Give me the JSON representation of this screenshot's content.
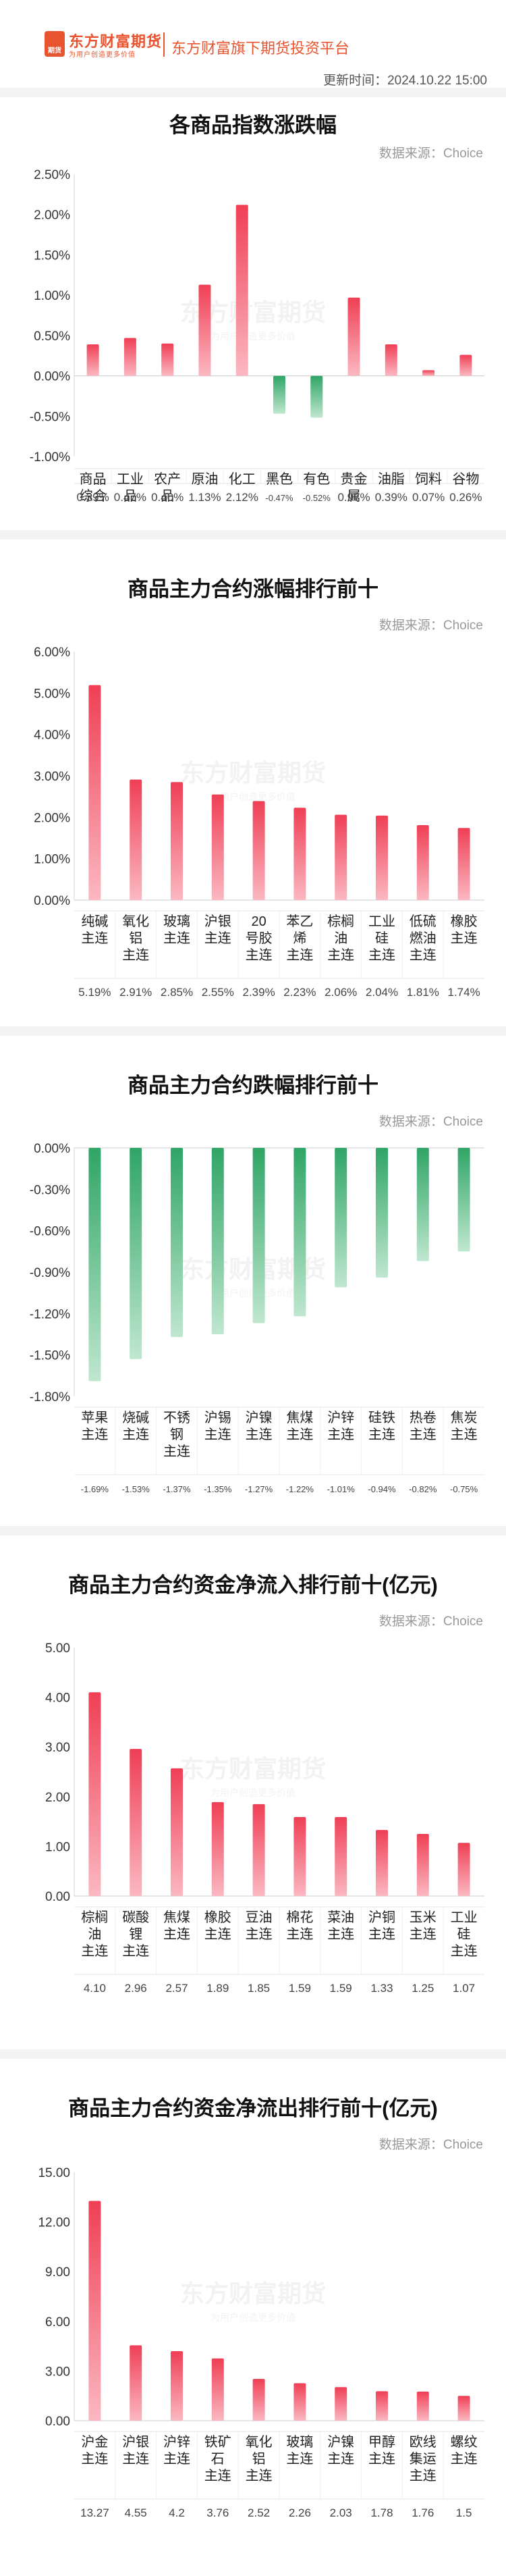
{
  "header": {
    "logo_badge": "期货",
    "logo_name": "东方财富期货",
    "logo_slogan": "为用户创造更多价值",
    "tagline": "东方财富旗下期货投资平台",
    "update_time": "更新时间：2024.10.22 15:00"
  },
  "watermark": {
    "name": "东方财富期货",
    "slogan": "为用户创造更多价值"
  },
  "colors": {
    "up_top": "#fbb8c2",
    "up_bottom": "#ef3f55",
    "down_top": "#2fa566",
    "down_bottom": "#bfe7cf",
    "accent": "#e8542f"
  },
  "chart_data": [
    {
      "type": "bar",
      "title": "各商品指数涨跌幅",
      "source": "数据来源：Choice",
      "categories": [
        "商品综合",
        "工业品",
        "农产品",
        "原油",
        "化工",
        "黑色",
        "有色",
        "贵金属",
        "油脂",
        "饲料",
        "谷物"
      ],
      "values": [
        0.39,
        0.47,
        0.4,
        1.13,
        2.12,
        -0.47,
        -0.52,
        0.97,
        0.39,
        0.07,
        0.26
      ],
      "value_labels": [
        "0.39%",
        "0.47%",
        "0.40%",
        "1.13%",
        "2.12%",
        "-0.47%",
        "-0.52%",
        "0.97%",
        "0.39%",
        "0.07%",
        "0.26%"
      ],
      "yticks": [
        "2.50%",
        "2.00%",
        "1.50%",
        "1.00%",
        "0.50%",
        "0.00%",
        "-0.50%",
        "-1.00%"
      ],
      "ylim": [
        -1.0,
        2.5
      ],
      "grid": false
    },
    {
      "type": "bar",
      "title": "商品主力合约涨幅排行前十",
      "source": "数据来源：Choice",
      "categories": [
        "纯碱主连",
        "氧化铝主连",
        "玻璃主连",
        "沪银主连",
        "20号胶主连",
        "苯乙烯主连",
        "棕榈油主连",
        "工业硅主连",
        "低硫燃油主连",
        "橡胶主连"
      ],
      "values": [
        5.19,
        2.91,
        2.85,
        2.55,
        2.39,
        2.23,
        2.06,
        2.04,
        1.81,
        1.74
      ],
      "value_labels": [
        "5.19%",
        "2.91%",
        "2.85%",
        "2.55%",
        "2.39%",
        "2.23%",
        "2.06%",
        "2.04%",
        "1.81%",
        "1.74%"
      ],
      "yticks": [
        "6.00%",
        "5.00%",
        "4.00%",
        "3.00%",
        "2.00%",
        "1.00%",
        "0.00%"
      ],
      "ylim": [
        0,
        6
      ],
      "grid": false
    },
    {
      "type": "bar",
      "title": "商品主力合约跌幅排行前十",
      "source": "数据来源：Choice",
      "categories": [
        "苹果主连",
        "烧碱主连",
        "不锈钢主连",
        "沪锡主连",
        "沪镍主连",
        "焦煤主连",
        "沪锌主连",
        "硅铁主连",
        "热卷主连",
        "焦炭主连"
      ],
      "values": [
        -1.69,
        -1.53,
        -1.37,
        -1.35,
        -1.27,
        -1.22,
        -1.01,
        -0.94,
        -0.82,
        -0.75
      ],
      "value_labels": [
        "-1.69%",
        "-1.53%",
        "-1.37%",
        "-1.35%",
        "-1.27%",
        "-1.22%",
        "-1.01%",
        "-0.94%",
        "-0.82%",
        "-0.75%"
      ],
      "yticks": [
        "0.00%",
        "-0.30%",
        "-0.60%",
        "-0.90%",
        "-1.20%",
        "-1.50%",
        "-1.80%"
      ],
      "ylim": [
        -1.8,
        0
      ],
      "grid": false
    },
    {
      "type": "bar",
      "title": "商品主力合约资金净流入排行前十(亿元)",
      "source": "数据来源：Choice",
      "categories": [
        "棕榈油主连",
        "碳酸锂主连",
        "焦煤主连",
        "橡胶主连",
        "豆油主连",
        "棉花主连",
        "菜油主连",
        "沪铜主连",
        "玉米主连",
        "工业硅主连"
      ],
      "values": [
        4.1,
        2.96,
        2.57,
        1.89,
        1.85,
        1.59,
        1.59,
        1.33,
        1.25,
        1.07
      ],
      "value_labels": [
        "4.10",
        "2.96",
        "2.57",
        "1.89",
        "1.85",
        "1.59",
        "1.59",
        "1.33",
        "1.25",
        "1.07"
      ],
      "yticks": [
        "5.00",
        "4.00",
        "3.00",
        "2.00",
        "1.00",
        "0.00"
      ],
      "ylim": [
        0,
        5
      ],
      "grid": false
    },
    {
      "type": "bar",
      "title": "商品主力合约资金净流出排行前十(亿元)",
      "source": "数据来源：Choice",
      "categories": [
        "沪金主连",
        "沪银主连",
        "沪锌主连",
        "铁矿石主连",
        "氧化铝主连",
        "玻璃主连",
        "沪镍主连",
        "甲醇主连",
        "欧线集运主连",
        "螺纹主连"
      ],
      "values": [
        13.27,
        4.55,
        4.2,
        3.76,
        2.52,
        2.26,
        2.03,
        1.78,
        1.76,
        1.5
      ],
      "value_labels": [
        "13.27",
        "4.55",
        "4.2",
        "3.76",
        "2.52",
        "2.26",
        "2.03",
        "1.78",
        "1.76",
        "1.5"
      ],
      "yticks": [
        "15.00",
        "12.00",
        "9.00",
        "6.00",
        "3.00",
        "0.00"
      ],
      "ylim": [
        0,
        15
      ],
      "grid": false
    }
  ]
}
